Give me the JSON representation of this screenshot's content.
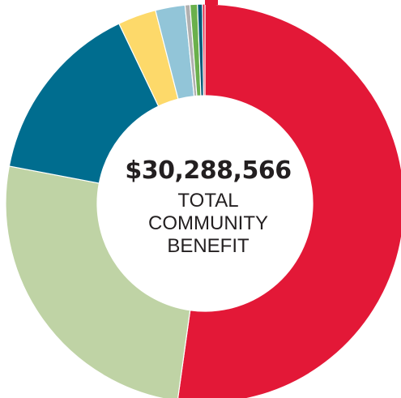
{
  "chart_data": {
    "type": "pie",
    "donut": true,
    "center_text": {
      "amount": "$30,288,566",
      "lines": [
        "TOTAL",
        "COMMUNITY",
        "BENEFIT"
      ]
    },
    "start_angle_deg": 0,
    "slices": [
      {
        "value": 52.2,
        "color": "#e31837"
      },
      {
        "value": 25.8,
        "color": "#bfd3a5"
      },
      {
        "value": 14.9,
        "color": "#006d8f"
      },
      {
        "value": 3.1,
        "color": "#fdd96a"
      },
      {
        "value": 2.4,
        "color": "#92c5d8"
      },
      {
        "value": 0.4,
        "color": "#b0b0b0"
      },
      {
        "value": 0.6,
        "color": "#6ab04c"
      },
      {
        "value": 0.4,
        "color": "#005a78"
      },
      {
        "value": 0.2,
        "color": "#e31837"
      }
    ],
    "marker_color": "#e31837",
    "legend": "none"
  }
}
